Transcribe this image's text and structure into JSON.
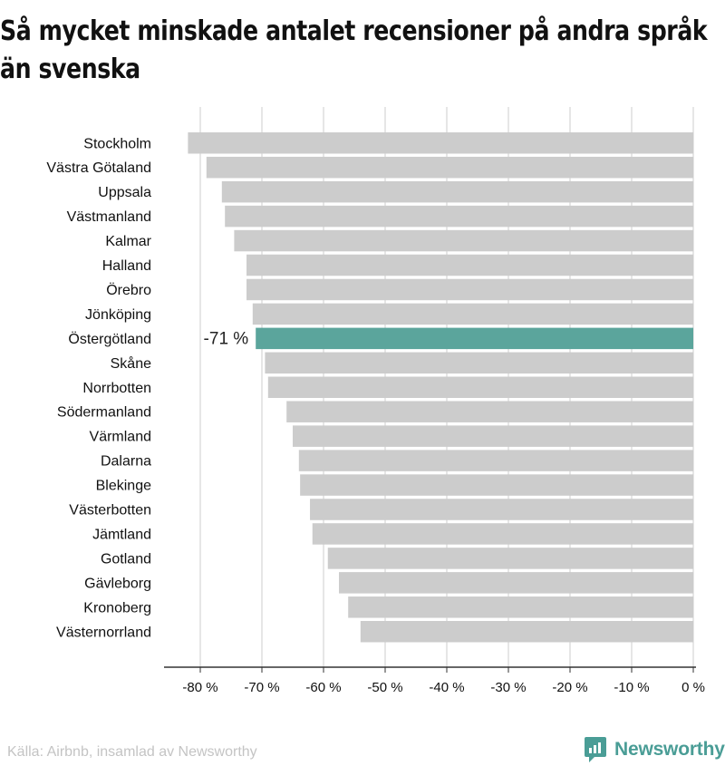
{
  "title": "Så mycket minskade antalet recensioner på andra språk än svenska",
  "chart_data": {
    "type": "bar",
    "orientation": "horizontal",
    "categories": [
      "Stockholm",
      "Västra Götaland",
      "Uppsala",
      "Västmanland",
      "Kalmar",
      "Halland",
      "Örebro",
      "Jönköping",
      "Östergötland",
      "Skåne",
      "Norrbotten",
      "Södermanland",
      "Värmland",
      "Dalarna",
      "Blekinge",
      "Västerbotten",
      "Jämtland",
      "Gotland",
      "Gävleborg",
      "Kronoberg",
      "Västernorrland"
    ],
    "values": [
      -82,
      -79,
      -76.5,
      -76,
      -74.5,
      -72.5,
      -72.5,
      -71.5,
      -71,
      -69.5,
      -69,
      -66,
      -65,
      -64,
      -63.8,
      -62.2,
      -61.8,
      -59.3,
      -57.5,
      -56,
      -54
    ],
    "highlight_index": 8,
    "highlight_label": "-71 %",
    "xlim": [
      -86,
      0
    ],
    "xticks": [
      -80,
      -70,
      -60,
      -50,
      -40,
      -30,
      -20,
      -10,
      0
    ],
    "xtick_labels": [
      "-80 %",
      "-70 %",
      "-60 %",
      "-50 %",
      "-40 %",
      "-30 %",
      "-20 %",
      "-10 %",
      "0 %"
    ],
    "grid": true,
    "colors": {
      "bar": "#cccccc",
      "highlight": "#5ba59c",
      "grid": "#cccccc",
      "axis": "#333333"
    }
  },
  "footer": {
    "source": "Källa: Airbnb, insamlad av Newsworthy",
    "brand": "Newsworthy"
  },
  "brand_color": "#4a9d96"
}
